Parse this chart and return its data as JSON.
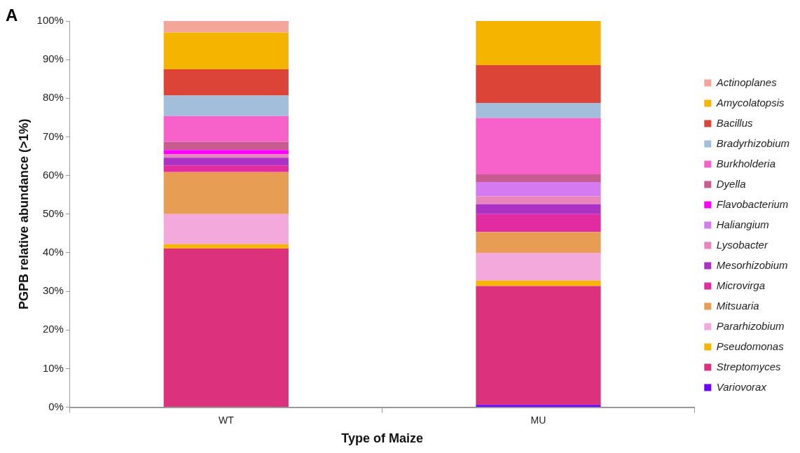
{
  "chart_data": {
    "type": "bar",
    "stacked": true,
    "xlabel": "Type of Maize",
    "ylabel": "PGPB relative abundance (>1%)",
    "annotations": [
      "A"
    ],
    "categories": [
      "WT",
      "MU"
    ],
    "ylim": [
      0,
      100
    ],
    "yticks": [
      {
        "value": 0,
        "label": "0%"
      },
      {
        "value": 10,
        "label": "10%"
      },
      {
        "value": 20,
        "label": "20%"
      },
      {
        "value": 30,
        "label": "30%"
      },
      {
        "value": 40,
        "label": "40%"
      },
      {
        "value": 50,
        "label": "50%"
      },
      {
        "value": 60,
        "label": "60%"
      },
      {
        "value": 70,
        "label": "70%"
      },
      {
        "value": 80,
        "label": "80%"
      },
      {
        "value": 90,
        "label": "90%"
      },
      {
        "value": 100,
        "label": "100%"
      }
    ],
    "grid": false,
    "legend": "right",
    "series": [
      {
        "name": "Variovorax",
        "color": "#6a00ff",
        "values": [
          0,
          0.6
        ]
      },
      {
        "name": "Streptomyces",
        "color": "#dc327e",
        "values": [
          41.1,
          30.8
        ]
      },
      {
        "name": "Pseudomonas",
        "color": "#f7b500",
        "values": [
          1.1,
          1.4
        ]
      },
      {
        "name": "Pararhizobium",
        "color": "#f4a9dd",
        "values": [
          7.8,
          7.2
        ]
      },
      {
        "name": "Mitsuaria",
        "color": "#e89d55",
        "values": [
          10.9,
          5.4
        ]
      },
      {
        "name": "Microvirga",
        "color": "#e22ba1",
        "values": [
          1.7,
          4.6
        ]
      },
      {
        "name": "Mesorhizobium",
        "color": "#ab32c4",
        "values": [
          2.0,
          2.6
        ]
      },
      {
        "name": "Lysobacter",
        "color": "#e985bc",
        "values": [
          0.9,
          2.0
        ]
      },
      {
        "name": "Haliangium",
        "color": "#d67af2",
        "values": [
          0,
          3.7
        ]
      },
      {
        "name": "Flavobacterium",
        "color": "#ff00ff",
        "values": [
          1.1,
          0
        ]
      },
      {
        "name": "Dyella",
        "color": "#c85b8f",
        "values": [
          2.1,
          2.0
        ]
      },
      {
        "name": "Burkholderia",
        "color": "#f662c9",
        "values": [
          6.7,
          14.6
        ]
      },
      {
        "name": "Bradyrhizobium",
        "color": "#a3bedb",
        "values": [
          5.3,
          3.9
        ]
      },
      {
        "name": "Bacillus",
        "color": "#dc4438",
        "values": [
          6.8,
          9.8
        ]
      },
      {
        "name": "Amycolatopsis",
        "color": "#f5b400",
        "values": [
          9.5,
          11.4
        ]
      },
      {
        "name": "Actinoplanes",
        "color": "#f4a69a",
        "values": [
          3.0,
          0
        ]
      }
    ]
  }
}
